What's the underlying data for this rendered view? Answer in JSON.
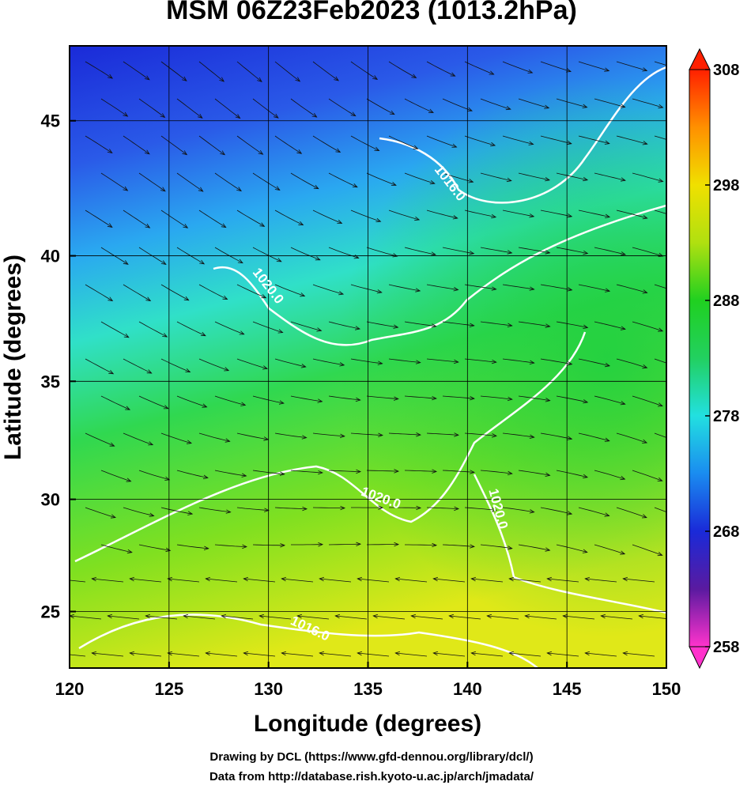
{
  "chart_data": {
    "type": "map",
    "title": "MSM 06Z23Feb2023 (1013.2hPa)",
    "x_label": "Longitude (degrees)",
    "y_label": "Latitude  (degrees)",
    "xlim": [
      120,
      150
    ],
    "ylim": [
      22.4,
      47.6
    ],
    "y_scale": "mercator",
    "xticks": [
      120,
      125,
      130,
      135,
      140,
      145,
      150
    ],
    "yticks": [
      25,
      30,
      35,
      40,
      45
    ],
    "grid": true,
    "colorbar": {
      "lim": [
        258,
        308
      ],
      "ticks": [
        258,
        268,
        278,
        288,
        298,
        308
      ],
      "colors": [
        "#ff33cc",
        "#5a1aa0",
        "#1a2ad8",
        "#1a8cf0",
        "#22e0e0",
        "#22d060",
        "#20d020",
        "#b0e010",
        "#f0e000",
        "#ff9000",
        "#ff2000"
      ]
    },
    "contour_labels": [
      "1016.0",
      "1020.0",
      "1020.0",
      "1020.0",
      "1016.0"
    ],
    "credits": [
      "Drawing by DCL (https://www.gfd-dennou.org/library/dcl/)",
      "Data from http://database.rish.kyoto-u.ac.jp/arch/jmadata/"
    ]
  }
}
